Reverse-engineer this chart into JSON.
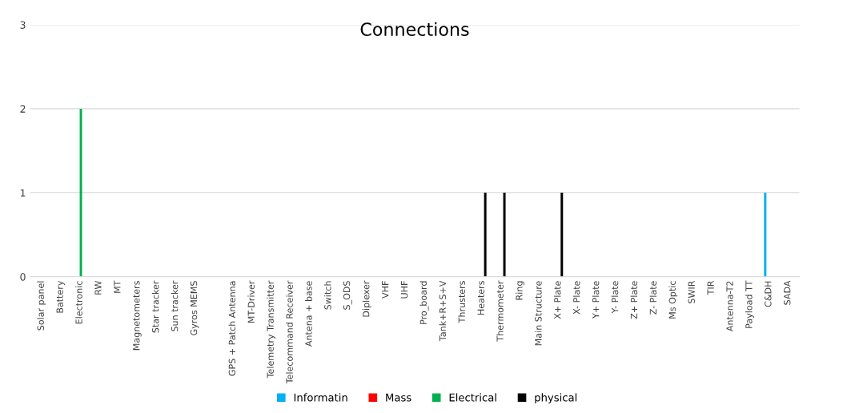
{
  "chart_data": {
    "type": "bar",
    "title": "Connections",
    "categories": [
      "Solar panel",
      "Battery",
      "Electronic",
      "RW",
      "MT",
      "Magnetometers",
      "Star tracker",
      "Sun tracker",
      "Gyros MEMS",
      null,
      "GPS + Patch Antenna",
      "MT-Driver",
      "Telemetry Transmitter",
      "Telecommand Receiver",
      "Antena + base",
      "Switch",
      "S_ODS",
      "Diplexer",
      "VHF",
      "UHF",
      "Pro_board",
      "Tank+R+S+V",
      "Thrusters",
      "Heaters",
      "Thermometer",
      "Ring",
      "Main Structure",
      "X+ Plate",
      "X- Plate",
      "Y+ Plate",
      "Y- Plate",
      "Z+ Plate",
      "Z- Plate",
      "Ms Optic",
      "SWIR",
      "TIR",
      "Antenna-T2",
      "Payload TT",
      "C&DH",
      "SADA"
    ],
    "series": [
      {
        "name": "Informatin",
        "color": "#00b0f0",
        "values": [
          0,
          0,
          0,
          0,
          0,
          0,
          0,
          0,
          0,
          0,
          0,
          0,
          0,
          0,
          0,
          0,
          0,
          0,
          0,
          0,
          0,
          0,
          0,
          0,
          0,
          0,
          0,
          0,
          0,
          0,
          0,
          0,
          0,
          0,
          0,
          0,
          0,
          0,
          1,
          0
        ]
      },
      {
        "name": "Mass",
        "color": "#ff0000",
        "values": [
          0,
          0,
          0,
          0,
          0,
          0,
          0,
          0,
          0,
          0,
          0,
          0,
          0,
          0,
          0,
          0,
          0,
          0,
          0,
          0,
          0,
          0,
          0,
          0,
          0,
          0,
          0,
          0,
          0,
          0,
          0,
          0,
          0,
          0,
          0,
          0,
          0,
          0,
          0,
          0
        ]
      },
      {
        "name": "Electrical",
        "color": "#00b050",
        "values": [
          0,
          0,
          2,
          0,
          0,
          0,
          0,
          0,
          0,
          0,
          0,
          0,
          0,
          0,
          0,
          0,
          0,
          0,
          0,
          0,
          0,
          0,
          0,
          0,
          0,
          0,
          0,
          0,
          0,
          0,
          0,
          0,
          0,
          0,
          0,
          0,
          0,
          0,
          0,
          0
        ]
      },
      {
        "name": "physical",
        "color": "#000000",
        "values": [
          0,
          0,
          0,
          0,
          0,
          0,
          0,
          0,
          0,
          0,
          0,
          0,
          0,
          0,
          0,
          0,
          0,
          0,
          0,
          0,
          0,
          0,
          0,
          1,
          1,
          0,
          0,
          1,
          0,
          0,
          0,
          0,
          0,
          0,
          0,
          0,
          0,
          0,
          0,
          0
        ]
      }
    ],
    "ylim": [
      0,
      3
    ],
    "yticks": [
      0,
      1,
      2,
      3
    ],
    "grid": "y",
    "legend": "bottom"
  }
}
